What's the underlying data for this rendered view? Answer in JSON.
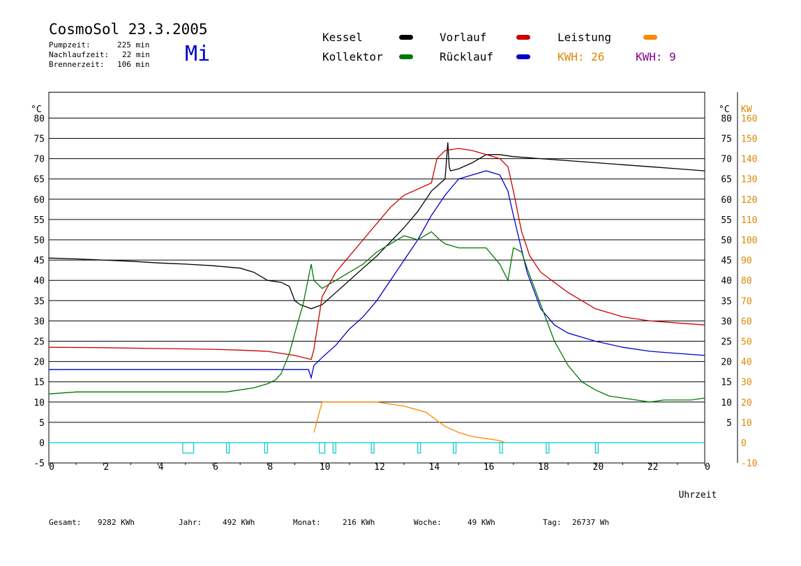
{
  "header": {
    "title": "CosmoSol 23.3.2005",
    "day": "Mi",
    "pump_label": "Pumpzeit:",
    "pump_value": "225 min",
    "nachlauf_label": "Nachlaufzeit:",
    "nachlauf_value": "22 min",
    "brenner_label": "Brennerzeit:",
    "brenner_value": "106 min"
  },
  "legend": {
    "kessel": "Kessel",
    "kollektor": "Kollektor",
    "vorlauf": "Vorlauf",
    "ruecklauf": "Rücklauf",
    "leistung": "Leistung",
    "kwh1": "KWH: 26",
    "kwh2": "KWH: 9"
  },
  "footer": {
    "gesamt_label": "Gesamt:",
    "gesamt_value": "9282 KWh",
    "jahr_label": "Jahr:",
    "jahr_value": "492 KWh",
    "monat_label": "Monat:",
    "monat_value": "216 KWh",
    "woche_label": "Woche:",
    "woche_value": "49 KWh",
    "tag_label": "Tag:",
    "tag_value": "26737 Wh"
  },
  "colors": {
    "kessel": "#000000",
    "kollektor": "#007700",
    "vorlauf": "#cc0000",
    "ruecklauf": "#0000cc",
    "leistung": "#ff8800",
    "purple": "#880088",
    "pump": "#00cccc",
    "right_axis": "#dd8800",
    "day": "#0000cc"
  },
  "chart_data": {
    "type": "line",
    "xlabel": "Uhrzeit",
    "ylabel_left": "°C",
    "ylabel_right_temp": "°C",
    "ylabel_right_power": "KW",
    "xlim": [
      0,
      24
    ],
    "ylim": [
      -5,
      85
    ],
    "x_ticks": [
      "0",
      "2",
      "4",
      "6",
      "8",
      "10",
      "12",
      "14",
      "16",
      "18",
      "20",
      "22",
      "0"
    ],
    "y_ticks_left": [
      "-5",
      "0",
      "5",
      "10",
      "15",
      "20",
      "25",
      "30",
      "35",
      "40",
      "45",
      "50",
      "55",
      "60",
      "65",
      "70",
      "75",
      "80"
    ],
    "y_ticks_right_temp": [
      "5",
      "10",
      "15",
      "20",
      "25",
      "30",
      "35",
      "40",
      "45",
      "50",
      "55",
      "60",
      "65",
      "70",
      "75",
      "80"
    ],
    "y_ticks_right_kw": [
      "-10",
      "0",
      "10",
      "20",
      "30",
      "40",
      "50",
      "60",
      "70",
      "80",
      "90",
      "100",
      "110",
      "120",
      "130",
      "140",
      "150",
      "160"
    ],
    "series": [
      {
        "name": "Kessel",
        "key": "kessel",
        "x": [
          0,
          1,
          2,
          3,
          4,
          5,
          6,
          7,
          7.5,
          8,
          8.5,
          8.8,
          9,
          9.2,
          9.6,
          9.8,
          10,
          10.5,
          11,
          11.5,
          12,
          12.5,
          13,
          13.5,
          14,
          14.5,
          14.6,
          14.65,
          14.7,
          15,
          15.5,
          16,
          16.5,
          17,
          18,
          19,
          20,
          21,
          22,
          23,
          24
        ],
        "y": [
          45.5,
          45.3,
          45,
          44.7,
          44.3,
          44,
          43.6,
          43,
          42,
          40,
          39.5,
          38.5,
          35,
          34,
          33,
          33.5,
          34,
          37,
          40,
          43,
          46,
          49.5,
          53,
          57,
          62,
          65,
          74,
          68,
          67,
          67.5,
          69,
          71,
          71,
          70.5,
          70,
          69.5,
          69,
          68.5,
          68,
          67.5,
          67
        ]
      },
      {
        "name": "Vorlauf",
        "key": "vorlauf",
        "x": [
          0,
          2,
          4,
          6,
          7,
          8,
          9,
          9.6,
          9.7,
          10,
          10.5,
          11,
          11.5,
          12,
          12.5,
          13,
          13.5,
          14,
          14.2,
          14.5,
          15,
          15.5,
          16,
          16.5,
          16.8,
          17,
          17.3,
          17.6,
          18,
          19,
          20,
          21,
          22,
          23,
          24
        ],
        "y": [
          23.5,
          23.4,
          23.2,
          23,
          22.8,
          22.5,
          21.5,
          20.5,
          23,
          36,
          42,
          46,
          50,
          54,
          58,
          61,
          62.5,
          64,
          70,
          72,
          72.5,
          72,
          71,
          70,
          68,
          62,
          52,
          46,
          42,
          37,
          33,
          31,
          30,
          29.5,
          29
        ]
      },
      {
        "name": "Rücklauf",
        "key": "ruecklauf",
        "x": [
          0,
          2,
          4,
          6,
          8,
          9,
          9.5,
          9.6,
          9.7,
          10,
          10.5,
          11,
          11.5,
          12,
          12.5,
          13,
          13.5,
          14,
          14.5,
          15,
          15.5,
          16,
          16.5,
          16.8,
          17,
          17.5,
          18,
          18.5,
          19,
          20,
          21,
          22,
          23,
          24
        ],
        "y": [
          18,
          18,
          18,
          18,
          18,
          18,
          18,
          16,
          19,
          21,
          24,
          28,
          31,
          35,
          40,
          45,
          50,
          56,
          61,
          65,
          66,
          67,
          66,
          62,
          56,
          42,
          33,
          29,
          27,
          25,
          23.5,
          22.5,
          22,
          21.5
        ]
      },
      {
        "name": "Kollektor",
        "key": "kollektor",
        "x": [
          0,
          1,
          2,
          3,
          4,
          5,
          6,
          6.5,
          7,
          7.5,
          8,
          8.3,
          8.5,
          8.8,
          9,
          9.3,
          9.6,
          9.7,
          10,
          10.5,
          11,
          11.5,
          12,
          12.5,
          13,
          13.5,
          14,
          14.3,
          14.5,
          15,
          15.5,
          16,
          16.5,
          16.8,
          17,
          17.3,
          17.5,
          18,
          18.5,
          19,
          19.5,
          20,
          20.5,
          21,
          21.5,
          22,
          22.5,
          23,
          23.5,
          24
        ],
        "y": [
          12,
          12.5,
          12.5,
          12.5,
          12.5,
          12.5,
          12.5,
          12.5,
          13,
          13.5,
          14.5,
          15.5,
          17,
          22,
          27,
          34,
          44,
          40,
          38,
          40,
          42,
          44,
          47,
          49,
          51,
          50,
          52,
          50,
          49,
          48,
          48,
          48,
          44,
          40,
          48,
          47,
          43,
          34,
          25,
          19,
          15,
          13,
          11.5,
          11,
          10.5,
          10,
          10.5,
          10.5,
          10.5,
          11
        ]
      }
    ],
    "leistung_kw": {
      "x": [
        9.7,
        10,
        11,
        12,
        13,
        13.8,
        14.5,
        15,
        15.5,
        16,
        16.5,
        16.7
      ],
      "y": [
        5,
        20,
        20,
        20,
        18,
        15,
        8,
        5,
        3,
        2,
        1,
        0
      ]
    },
    "pump_intervals": [
      [
        4.9,
        5.3
      ],
      [
        6.5,
        6.6
      ],
      [
        7.9,
        8.0
      ],
      [
        9.9,
        10.1
      ],
      [
        10.4,
        10.5
      ],
      [
        11.8,
        11.9
      ],
      [
        13.5,
        13.6
      ],
      [
        14.8,
        14.9
      ],
      [
        16.5,
        16.6
      ],
      [
        18.2,
        18.3
      ],
      [
        20.0,
        20.1
      ]
    ]
  }
}
